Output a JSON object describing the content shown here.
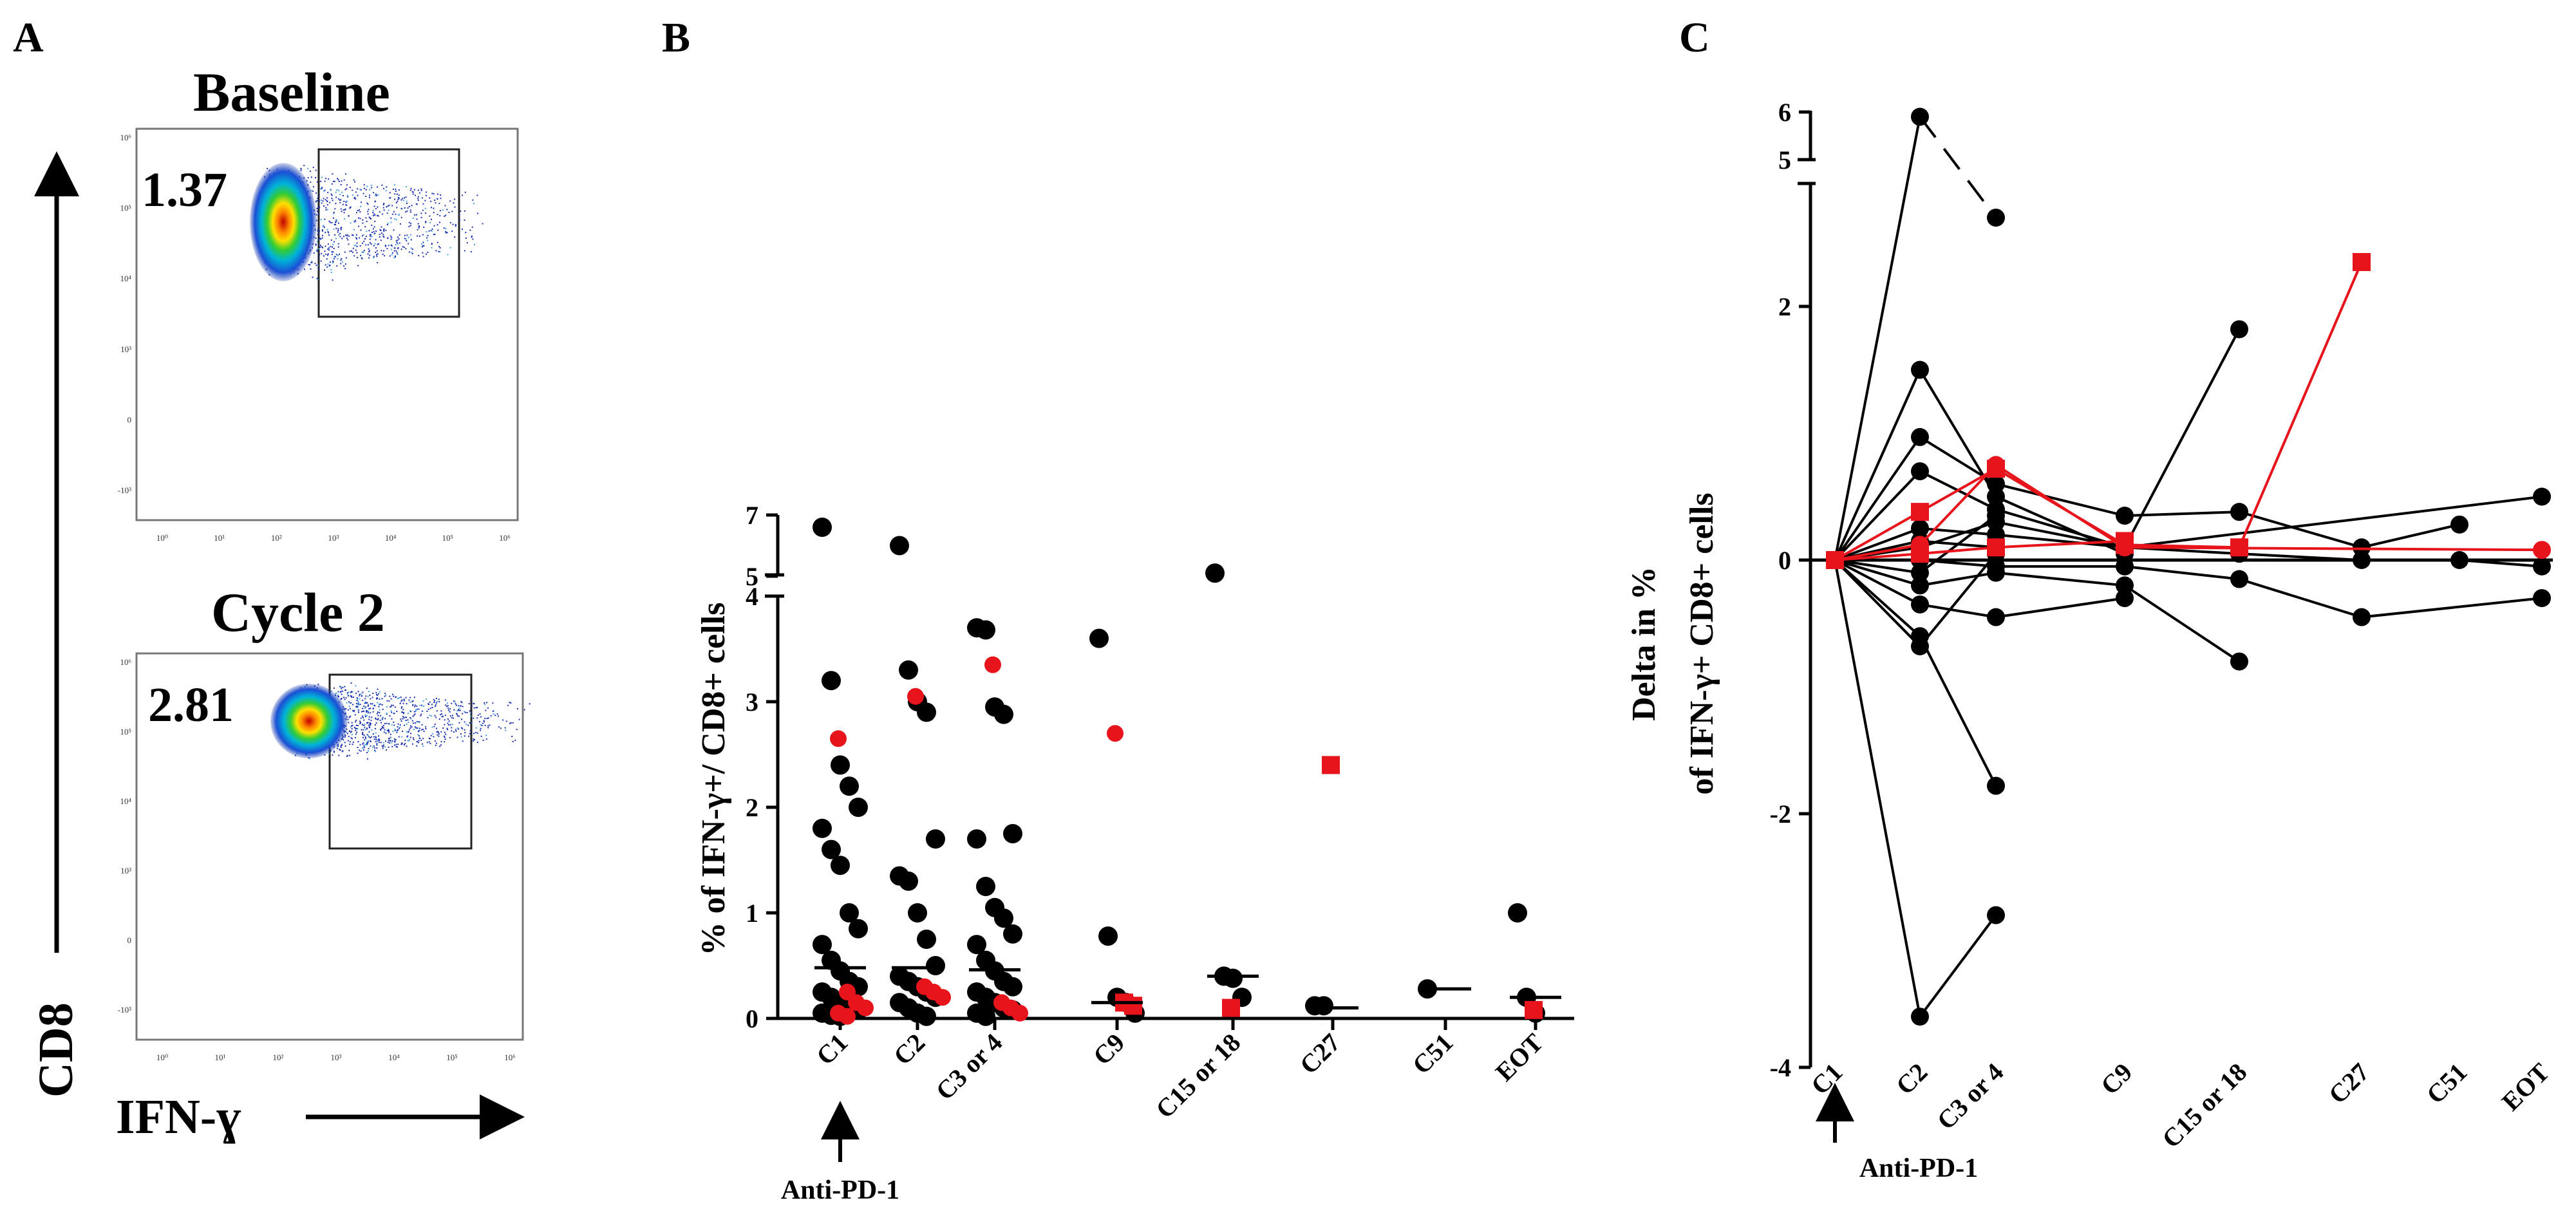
{
  "panels": {
    "a": {
      "letter": "A",
      "flow": [
        {
          "title": "Baseline",
          "value": "1.37"
        },
        {
          "title": "Cycle 2",
          "value": "2.81"
        }
      ],
      "y_axis_label": "CD8",
      "x_axis_label": "IFN-ɣ",
      "tick_labels_x": [
        "10⁰",
        "10¹",
        "10²",
        "10³",
        "10⁴",
        "10⁵",
        "10⁶"
      ],
      "tick_labels_y": [
        "10⁶",
        "10⁵",
        "10⁴",
        "10³",
        "0",
        "-10³"
      ]
    },
    "b": {
      "letter": "B"
    },
    "c": {
      "letter": "C"
    }
  },
  "chart_data": [
    {
      "type": "scatter",
      "panel": "B",
      "ylabel": "% of IFN-γ+/ CD8+ cells",
      "categories": [
        "C1",
        "C2",
        "C3 or 4",
        "C9",
        "C15 or 18",
        "C27",
        "C51",
        "EOT"
      ],
      "ylim_lower": [
        0,
        4
      ],
      "ylim_upper": [
        5,
        7
      ],
      "yticks_lower": [
        "0",
        "1",
        "2",
        "3",
        "4"
      ],
      "yticks_upper": [
        "5",
        "7"
      ],
      "annotation": "Anti-PD-1",
      "colors": {
        "black": "#000000",
        "red": "#e8141b"
      },
      "black_points": [
        {
          "cat": "C1",
          "values": [
            6.6,
            3.2,
            2.4,
            2.2,
            2.0,
            1.8,
            1.6,
            1.45,
            1.0,
            0.85,
            0.7,
            0.55,
            0.45,
            0.35,
            0.3,
            0.25,
            0.2,
            0.15,
            0.1,
            0.08,
            0.05,
            0.03,
            0.02
          ]
        },
        {
          "cat": "C2",
          "values": [
            6.0,
            3.3,
            3.0,
            2.9,
            1.7,
            1.35,
            1.3,
            1.0,
            0.75,
            0.5,
            0.4,
            0.35,
            0.3,
            0.25,
            0.2,
            0.15,
            0.1,
            0.05,
            0.02
          ]
        },
        {
          "cat": "C3 or 4",
          "values": [
            3.7,
            3.68,
            2.95,
            2.88,
            1.75,
            1.7,
            1.25,
            1.05,
            0.95,
            0.8,
            0.7,
            0.55,
            0.45,
            0.35,
            0.3,
            0.25,
            0.2,
            0.15,
            0.1,
            0.08,
            0.05,
            0.02
          ]
        },
        {
          "cat": "C9",
          "values": [
            3.6,
            0.78,
            0.2,
            0.15,
            0.05
          ]
        },
        {
          "cat": "C15 or 18",
          "values": [
            5.1,
            0.4,
            0.38,
            0.2
          ]
        },
        {
          "cat": "C27",
          "values": [
            0.12,
            0.12
          ]
        },
        {
          "cat": "C51",
          "values": [
            0.28
          ]
        },
        {
          "cat": "EOT",
          "values": [
            1.0,
            0.2,
            0.05
          ]
        }
      ],
      "red_points": [
        {
          "cat": "C1",
          "values": [
            2.65,
            0.25,
            0.15,
            0.1,
            0.05,
            0.02
          ]
        },
        {
          "cat": "C2",
          "values": [
            3.05,
            0.3,
            0.25,
            0.2
          ]
        },
        {
          "cat": "C3 or 4",
          "values": [
            3.35,
            0.15,
            0.1,
            0.05
          ]
        },
        {
          "cat": "C9",
          "values": [
            2.7,
            0.15,
            0.12
          ]
        },
        {
          "cat": "C15 or 18",
          "values": [
            0.1
          ]
        },
        {
          "cat": "C27",
          "values": [
            2.4
          ]
        },
        {
          "cat": "EOT",
          "values": [
            0.08
          ]
        }
      ],
      "medians": {
        "C1": 0.48,
        "C2": 0.48,
        "C3 or 4": 0.46,
        "C9": 0.15,
        "C15 or 18": 0.4,
        "C27": 0.1,
        "C51": 0.28,
        "EOT": 0.2
      }
    },
    {
      "type": "line",
      "panel": "C",
      "ylabel_line1": "Delta in %",
      "ylabel_line2": "of IFN-γ+ CD8+ cells",
      "categories": [
        "C1",
        "C2",
        "C3 or 4",
        "C9",
        "C15 or 18",
        "C27",
        "C51",
        "EOT"
      ],
      "ylim_lower": [
        -4,
        3
      ],
      "ylim_upper": [
        5,
        6
      ],
      "yticks_lower": [
        "-4",
        "-2",
        "0",
        "2"
      ],
      "yticks_upper": [
        "5",
        "6"
      ],
      "annotation": "Anti-PD-1",
      "series_black": [
        {
          "points": [
            [
              "C1",
              0
            ],
            [
              "C2",
              5.9
            ]
          ],
          "dashed_to": [
            "C3 or 4",
            2.7
          ]
        },
        {
          "points": [
            [
              "C1",
              0
            ],
            [
              "C2",
              1.5
            ],
            [
              "C3 or 4",
              0.5
            ],
            [
              "C9",
              0.05
            ]
          ]
        },
        {
          "points": [
            [
              "C1",
              0
            ],
            [
              "C2",
              0.97
            ],
            [
              "C3 or 4",
              0.6
            ],
            [
              "C9",
              0.35
            ],
            [
              "C15 or 18",
              0.38
            ],
            [
              "C27",
              0.1
            ],
            [
              "C51",
              0.28
            ]
          ]
        },
        {
          "points": [
            [
              "C1",
              0
            ],
            [
              "C2",
              0.7
            ],
            [
              "C3 or 4",
              0.4
            ],
            [
              "C9",
              0.1
            ],
            [
              "C15 or 18",
              1.82
            ]
          ]
        },
        {
          "points": [
            [
              "C1",
              0
            ],
            [
              "C2",
              0.25
            ],
            [
              "C3 or 4",
              0.2
            ],
            [
              "C9",
              0.1
            ],
            [
              "C15 or 18",
              0.05
            ],
            [
              "C27",
              0.0
            ],
            [
              "C51",
              0.0
            ],
            [
              "EOT",
              -0.05
            ]
          ]
        },
        {
          "points": [
            [
              "C1",
              0
            ],
            [
              "C2",
              0.1
            ],
            [
              "C3 or 4",
              0.3
            ],
            [
              "C9",
              0.1
            ],
            [
              "EOT",
              0.5
            ]
          ]
        },
        {
          "points": [
            [
              "C1",
              0
            ],
            [
              "C2",
              0.0
            ],
            [
              "C3 or 4",
              -0.05
            ],
            [
              "C9",
              -0.05
            ],
            [
              "C15 or 18",
              -0.15
            ],
            [
              "C27",
              -0.45
            ],
            [
              "EOT",
              -0.3
            ]
          ]
        },
        {
          "points": [
            [
              "C1",
              0
            ],
            [
              "C2",
              -0.2
            ],
            [
              "C3 or 4",
              -0.1
            ],
            [
              "C9",
              -0.2
            ],
            [
              "C15 or 18",
              -0.8
            ]
          ]
        },
        {
          "points": [
            [
              "C1",
              0
            ],
            [
              "C2",
              -0.35
            ],
            [
              "C3 or 4",
              -0.45
            ],
            [
              "C9",
              -0.3
            ]
          ]
        },
        {
          "points": [
            [
              "C1",
              0
            ],
            [
              "C2",
              -0.6
            ],
            [
              "C3 or 4",
              -1.78
            ]
          ]
        },
        {
          "points": [
            [
              "C1",
              0
            ],
            [
              "C2",
              -0.68
            ],
            [
              "C3 or 4",
              0.05
            ]
          ]
        },
        {
          "points": [
            [
              "C1",
              0
            ],
            [
              "C2",
              -3.6
            ],
            [
              "C3 or 4",
              -2.8
            ]
          ]
        },
        {
          "points": [
            [
              "C1",
              0
            ],
            [
              "C2",
              0.15
            ],
            [
              "C3 or 4",
              0.1
            ]
          ]
        },
        {
          "points": [
            [
              "C1",
              0
            ],
            [
              "C2",
              -0.1
            ],
            [
              "C3 or 4",
              0.35
            ]
          ]
        }
      ],
      "series_red": [
        {
          "points": [
            [
              "C1",
              0
            ],
            [
              "C2",
              0.38
            ],
            [
              "C3 or 4",
              0.72
            ],
            [
              "C9",
              0.12
            ],
            [
              "C15 or 18",
              0.1
            ],
            [
              "C27",
              2.35
            ]
          ],
          "marker": "square"
        },
        {
          "points": [
            [
              "C1",
              0
            ],
            [
              "C2",
              0.12
            ],
            [
              "C3 or 4",
              0.75
            ],
            [
              "C9",
              0.1
            ],
            [
              "EOT",
              0.08
            ]
          ],
          "marker": "circle"
        },
        {
          "points": [
            [
              "C1",
              0
            ],
            [
              "C2",
              0.05
            ],
            [
              "C3 or 4",
              0.1
            ],
            [
              "C9",
              0.15
            ]
          ],
          "marker": "square"
        }
      ]
    }
  ]
}
